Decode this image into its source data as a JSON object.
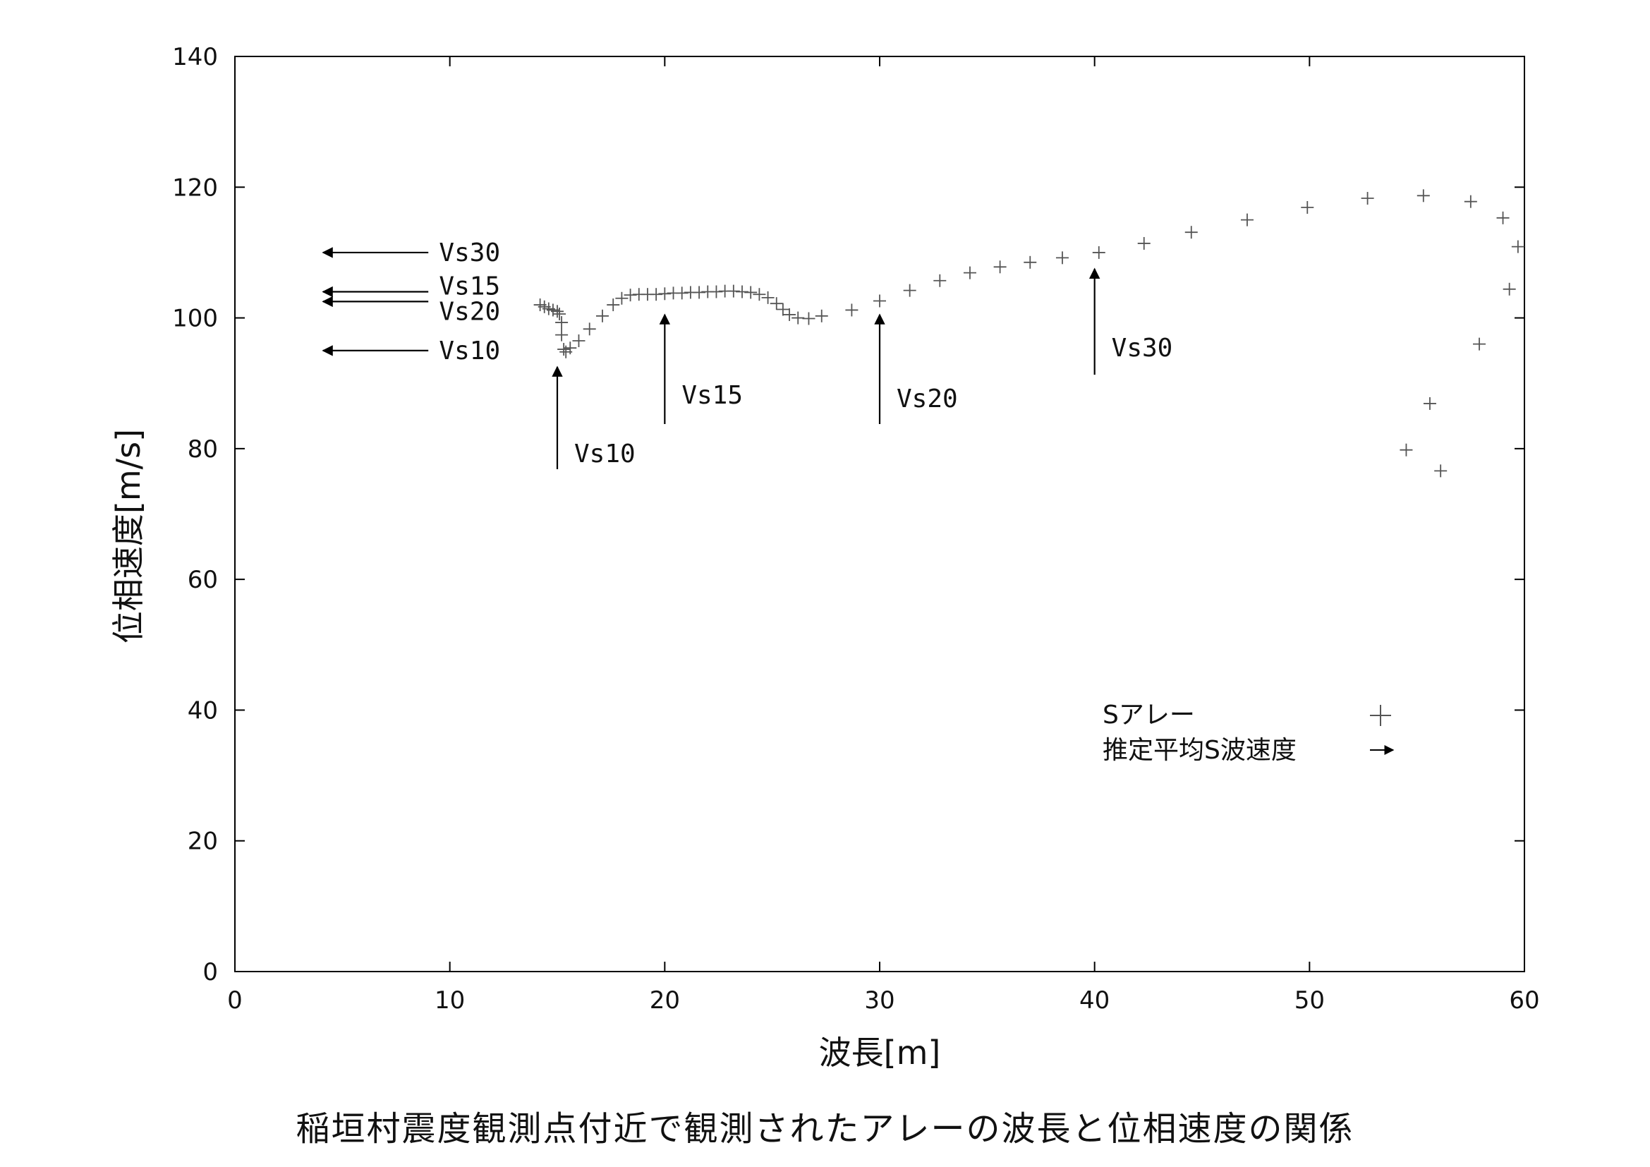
{
  "caption": "稲垣村震度観測点付近で観測されたアレーの波長と位相速度の関係",
  "chart_data": {
    "type": "scatter",
    "title": "",
    "xlabel": "波長[m]",
    "ylabel": "位相速度[m/s]",
    "xlim": [
      0,
      60
    ],
    "ylim": [
      0,
      140
    ],
    "xticks": [
      "0",
      "10",
      "20",
      "30",
      "40",
      "50",
      "60"
    ],
    "yticks": [
      "0",
      "20",
      "40",
      "60",
      "80",
      "100",
      "120",
      "140"
    ],
    "grid": false,
    "legend_position": "lower-right",
    "series": [
      {
        "name": "Sアレー",
        "marker": "plus",
        "color": "#555555",
        "x": [
          14.2,
          14.4,
          14.6,
          14.8,
          15.0,
          15.1,
          15.2,
          15.2,
          15.3,
          15.4,
          15.6,
          16.0,
          16.5,
          17.1,
          17.6,
          18.0,
          18.4,
          18.8,
          19.2,
          19.6,
          20.0,
          20.4,
          20.8,
          21.2,
          21.6,
          22.0,
          22.4,
          22.8,
          23.2,
          23.6,
          24.0,
          24.4,
          24.8,
          25.2,
          25.5,
          25.8,
          26.2,
          26.7,
          27.3,
          28.7,
          30.0,
          31.4,
          32.8,
          34.2,
          35.6,
          37.0,
          38.5,
          40.2,
          42.3,
          44.5,
          47.1,
          49.9,
          52.7,
          55.3,
          57.5,
          59.0,
          59.7,
          59.3,
          57.9,
          55.6,
          54.5,
          56.1
        ],
        "y": [
          102.0,
          101.7,
          101.4,
          101.2,
          101.0,
          100.6,
          99.3,
          97.4,
          95.2,
          94.8,
          95.4,
          96.5,
          98.3,
          100.3,
          102.0,
          103.0,
          103.5,
          103.6,
          103.6,
          103.6,
          103.7,
          103.8,
          103.8,
          103.9,
          103.9,
          104.0,
          104.0,
          104.1,
          104.1,
          104.0,
          103.9,
          103.6,
          103.1,
          102.2,
          101.3,
          100.5,
          100.0,
          99.9,
          100.3,
          101.2,
          102.6,
          104.2,
          105.7,
          106.9,
          107.8,
          108.5,
          109.2,
          110.0,
          111.4,
          113.1,
          115.0,
          116.9,
          118.3,
          118.7,
          117.8,
          115.3,
          110.9,
          104.4,
          96.0,
          86.9,
          79.8,
          76.6
        ]
      },
      {
        "name": "推定平均S波速度",
        "marker": "arrow",
        "color": "#000000"
      }
    ],
    "annotations": [
      {
        "text": "Vs30",
        "axis": "y",
        "value": 110.0,
        "direction": "left"
      },
      {
        "text": "Vs15",
        "axis": "y",
        "value": 104.0,
        "direction": "left"
      },
      {
        "text": "Vs20",
        "axis": "y",
        "value": 102.5,
        "direction": "left"
      },
      {
        "text": "Vs10",
        "axis": "y",
        "value": 95.0,
        "direction": "left"
      },
      {
        "text": "Vs10",
        "axis": "x",
        "value": 15.0,
        "direction": "up"
      },
      {
        "text": "Vs15",
        "axis": "x",
        "value": 20.0,
        "direction": "up"
      },
      {
        "text": "Vs20",
        "axis": "x",
        "value": 30.0,
        "direction": "up"
      },
      {
        "text": "Vs30",
        "axis": "x",
        "value": 40.0,
        "direction": "up"
      }
    ]
  }
}
